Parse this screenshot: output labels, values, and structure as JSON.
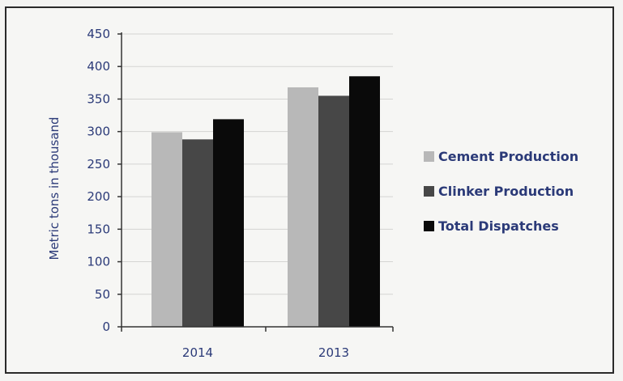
{
  "chart_data": {
    "type": "bar",
    "title": "",
    "xlabel": "",
    "ylabel": "Metric tons in thousand",
    "categories": [
      "2014",
      "2013"
    ],
    "ylim": [
      0,
      450
    ],
    "yticks": [
      0,
      50,
      100,
      150,
      200,
      250,
      300,
      350,
      400,
      450
    ],
    "grid": true,
    "legend_position": "right",
    "series": [
      {
        "name": "Cement Production",
        "values": [
          299,
          368
        ],
        "color": "#b8b8b8"
      },
      {
        "name": "Clinker Production",
        "values": [
          288,
          355
        ],
        "color": "#474747"
      },
      {
        "name": "Total Dispatches",
        "values": [
          319,
          385
        ],
        "color": "#0a0a0a"
      }
    ]
  }
}
